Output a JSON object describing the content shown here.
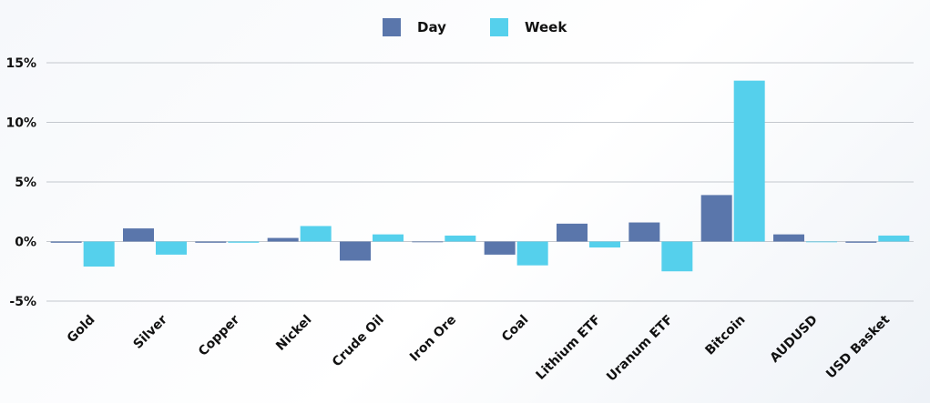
{
  "chart_data": {
    "type": "bar",
    "title": "",
    "xlabel": "",
    "ylabel": "",
    "categories": [
      "Gold",
      "Silver",
      "Copper",
      "Nickel",
      "Crude Oil",
      "Iron Ore",
      "Coal",
      "Lithium ETF",
      "Uranum ETF",
      "Bitcoin",
      "AUDUSD",
      "USD Basket"
    ],
    "series": [
      {
        "name": "Day",
        "color": "#5a76ab",
        "values": [
          -0.1,
          1.1,
          -0.1,
          0.3,
          -1.6,
          0.0,
          -1.1,
          1.5,
          1.6,
          3.9,
          0.6,
          -0.1
        ]
      },
      {
        "name": "Week",
        "color": "#55d0ec",
        "values": [
          -2.1,
          -1.1,
          -0.1,
          1.3,
          0.6,
          0.5,
          -2.0,
          -0.5,
          -2.5,
          13.5,
          0.0,
          0.5
        ]
      }
    ],
    "ylim": [
      -5,
      15
    ],
    "yticks": [
      -5,
      0,
      5,
      10,
      15
    ],
    "ytick_labels": [
      "-5%",
      "0%",
      "5%",
      "10%",
      "15%"
    ],
    "grid": true,
    "legend_position": "top-center"
  }
}
